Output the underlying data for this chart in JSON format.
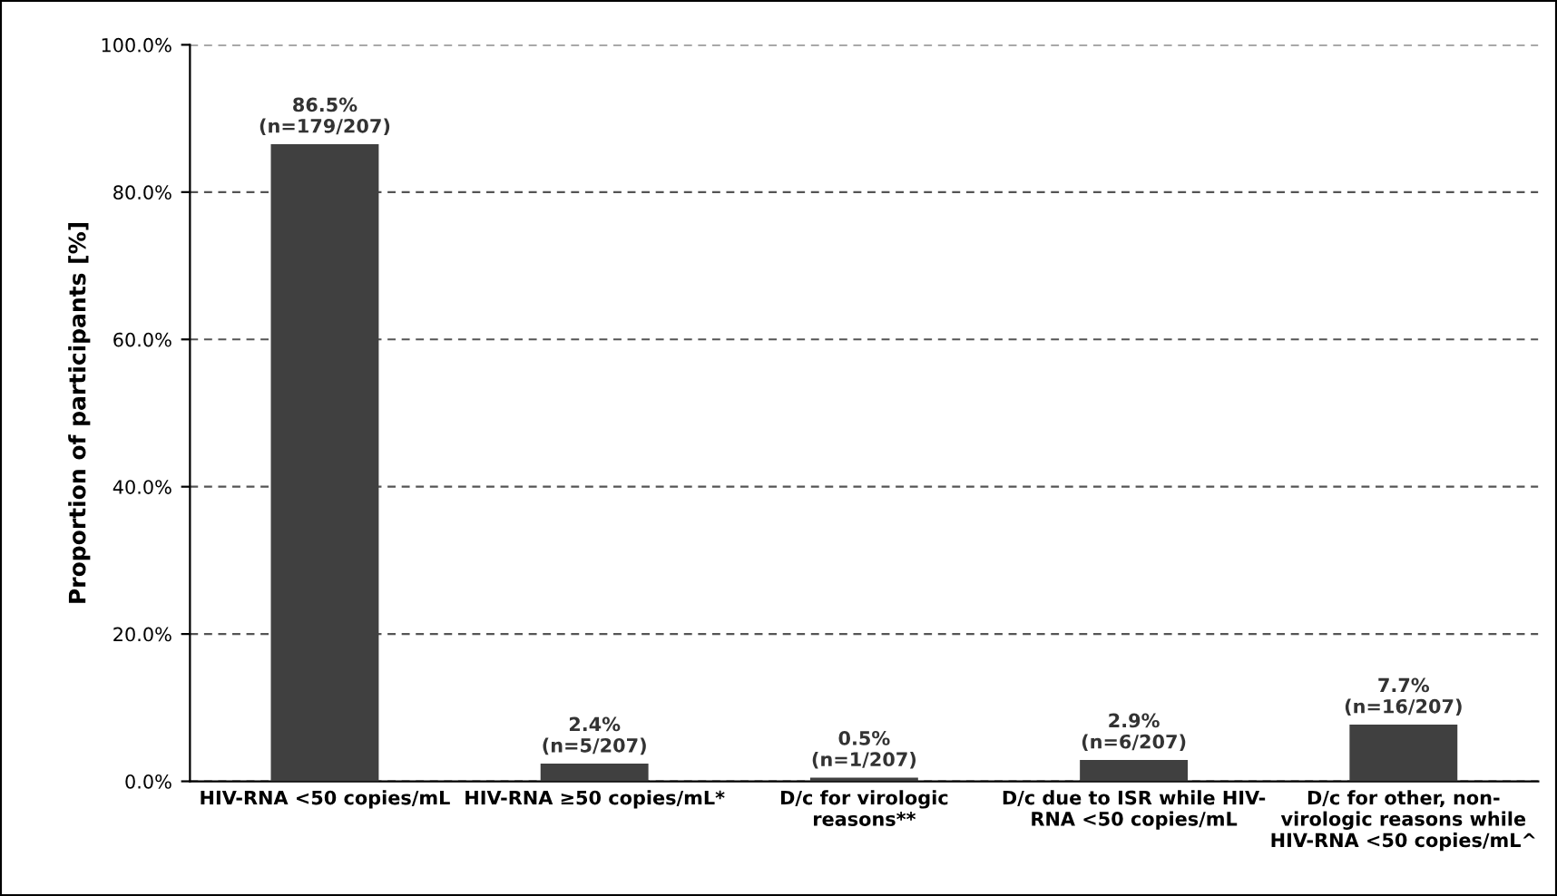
{
  "chart_data": {
    "type": "bar",
    "ylabel": "Proportion of participants [%]",
    "categories": [
      "HIV-RNA <50 copies/mL",
      "HIV-RNA ≥50 copies/mL*",
      "D/c for virologic\nreasons**",
      "D/c due to ISR while HIV-\nRNA <50 copies/mL",
      "D/c for other, non-\nvirologic reasons while\nHIV-RNA <50 copies/mL^"
    ],
    "values": [
      86.5,
      2.4,
      0.5,
      2.9,
      7.7
    ],
    "value_labels": [
      "86.5%\n(n=179/207)",
      "2.4%\n(n=5/207)",
      "0.5%\n(n=1/207)",
      "2.9%\n(n=6/207)",
      "7.7%\n(n=16/207)"
    ],
    "color": "#404040",
    "ylim": [
      0,
      100
    ],
    "yticks": [
      {
        "value": 0,
        "label": "0.0%"
      },
      {
        "value": 20,
        "label": "20.0%"
      },
      {
        "value": 40,
        "label": "40.0%"
      },
      {
        "value": 60,
        "label": "60.0%"
      },
      {
        "value": 80,
        "label": "80.0%"
      },
      {
        "value": 100,
        "label": "100.0%"
      }
    ],
    "grid": "y"
  }
}
